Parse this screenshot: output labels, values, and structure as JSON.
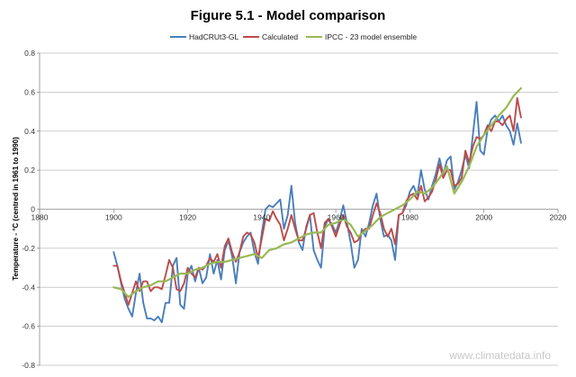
{
  "chart_data": {
    "type": "line",
    "title": "Figure 5.1 - Model comparison",
    "ylabel": "Temperature - °C (centred in 1961 to 1990)",
    "xlabel": "",
    "xlim": [
      1880,
      2020
    ],
    "ylim": [
      -0.8,
      0.8
    ],
    "xticks": [
      "1880",
      "1900",
      "1920",
      "1940",
      "1960",
      "1980",
      "2000",
      "2020"
    ],
    "yticks": [
      "0.8",
      "0.6",
      "0.4",
      "0.2",
      "0",
      "-0.2",
      "-0.4",
      "-0.6",
      "-0.8"
    ],
    "grid": "horizontal",
    "legend": "top",
    "watermark": "www.climatedata.info",
    "series": [
      {
        "name": "HadCRUt3-GL",
        "color": "#4a7ebb",
        "x": [
          1900,
          1901,
          1902,
          1903,
          1904,
          1905,
          1906,
          1907,
          1908,
          1909,
          1910,
          1911,
          1912,
          1913,
          1914,
          1915,
          1916,
          1917,
          1918,
          1919,
          1920,
          1921,
          1922,
          1923,
          1924,
          1925,
          1926,
          1927,
          1928,
          1929,
          1930,
          1931,
          1932,
          1933,
          1934,
          1935,
          1936,
          1937,
          1938,
          1939,
          1940,
          1941,
          1942,
          1943,
          1944,
          1945,
          1946,
          1947,
          1948,
          1949,
          1950,
          1951,
          1952,
          1953,
          1954,
          1955,
          1956,
          1957,
          1958,
          1959,
          1960,
          1961,
          1962,
          1963,
          1964,
          1965,
          1966,
          1967,
          1968,
          1969,
          1970,
          1971,
          1972,
          1973,
          1974,
          1975,
          1976,
          1977,
          1978,
          1979,
          1980,
          1981,
          1982,
          1983,
          1984,
          1985,
          1986,
          1987,
          1988,
          1989,
          1990,
          1991,
          1992,
          1993,
          1994,
          1995,
          1996,
          1997,
          1998,
          1999,
          2000,
          2001,
          2002,
          2003,
          2004,
          2005,
          2006,
          2007,
          2008,
          2009,
          2010
        ],
        "values": [
          -0.22,
          -0.29,
          -0.38,
          -0.46,
          -0.51,
          -0.55,
          -0.43,
          -0.33,
          -0.48,
          -0.56,
          -0.56,
          -0.57,
          -0.55,
          -0.58,
          -0.48,
          -0.48,
          -0.29,
          -0.25,
          -0.49,
          -0.51,
          -0.33,
          -0.29,
          -0.37,
          -0.3,
          -0.38,
          -0.35,
          -0.23,
          -0.33,
          -0.26,
          -0.36,
          -0.21,
          -0.16,
          -0.24,
          -0.38,
          -0.22,
          -0.17,
          -0.14,
          -0.12,
          -0.22,
          -0.28,
          -0.12,
          0.0,
          0.02,
          0.01,
          0.03,
          0.05,
          -0.1,
          -0.03,
          0.12,
          -0.07,
          -0.17,
          -0.21,
          -0.09,
          -0.03,
          -0.21,
          -0.26,
          -0.3,
          -0.09,
          -0.05,
          -0.08,
          -0.12,
          -0.06,
          0.02,
          -0.07,
          -0.17,
          -0.3,
          -0.26,
          -0.1,
          -0.14,
          -0.07,
          0.02,
          0.08,
          -0.05,
          -0.14,
          -0.13,
          -0.16,
          -0.26,
          -0.03,
          -0.02,
          0.02,
          0.09,
          0.12,
          0.07,
          0.2,
          0.1,
          0.05,
          0.12,
          0.18,
          0.26,
          0.18,
          0.25,
          0.27,
          0.1,
          0.14,
          0.2,
          0.28,
          0.21,
          0.38,
          0.55,
          0.3,
          0.28,
          0.41,
          0.46,
          0.48,
          0.45,
          0.48,
          0.43,
          0.4,
          0.33,
          0.44,
          0.34
        ]
      },
      {
        "name": "Calculated",
        "color": "#be4b48",
        "x": [
          1900,
          1901,
          1902,
          1903,
          1904,
          1905,
          1906,
          1907,
          1908,
          1909,
          1910,
          1911,
          1912,
          1913,
          1914,
          1915,
          1916,
          1917,
          1918,
          1919,
          1920,
          1921,
          1922,
          1923,
          1924,
          1925,
          1926,
          1927,
          1928,
          1929,
          1930,
          1931,
          1932,
          1933,
          1934,
          1935,
          1936,
          1937,
          1938,
          1939,
          1940,
          1941,
          1942,
          1943,
          1944,
          1945,
          1946,
          1947,
          1948,
          1949,
          1950,
          1951,
          1952,
          1953,
          1954,
          1955,
          1956,
          1957,
          1958,
          1959,
          1960,
          1961,
          1962,
          1963,
          1964,
          1965,
          1966,
          1967,
          1968,
          1969,
          1970,
          1971,
          1972,
          1973,
          1974,
          1975,
          1976,
          1977,
          1978,
          1979,
          1980,
          1981,
          1982,
          1983,
          1984,
          1985,
          1986,
          1987,
          1988,
          1989,
          1990,
          1991,
          1992,
          1993,
          1994,
          1995,
          1996,
          1997,
          1998,
          1999,
          2000,
          2001,
          2002,
          2003,
          2004,
          2005,
          2006,
          2007,
          2008,
          2009,
          2010
        ],
        "values": [
          -0.29,
          -0.29,
          -0.37,
          -0.43,
          -0.49,
          -0.43,
          -0.37,
          -0.42,
          -0.37,
          -0.37,
          -0.42,
          -0.4,
          -0.4,
          -0.41,
          -0.34,
          -0.26,
          -0.3,
          -0.41,
          -0.42,
          -0.38,
          -0.3,
          -0.33,
          -0.35,
          -0.3,
          -0.31,
          -0.29,
          -0.25,
          -0.27,
          -0.23,
          -0.3,
          -0.19,
          -0.15,
          -0.22,
          -0.27,
          -0.22,
          -0.14,
          -0.12,
          -0.13,
          -0.17,
          -0.25,
          -0.15,
          -0.05,
          -0.06,
          -0.01,
          -0.05,
          -0.08,
          -0.16,
          -0.1,
          -0.03,
          -0.1,
          -0.16,
          -0.16,
          -0.1,
          -0.03,
          -0.02,
          -0.12,
          -0.2,
          -0.07,
          -0.05,
          -0.09,
          -0.14,
          -0.08,
          -0.03,
          -0.09,
          -0.12,
          -0.17,
          -0.16,
          -0.12,
          -0.1,
          -0.1,
          -0.03,
          0.03,
          -0.02,
          -0.1,
          -0.14,
          -0.1,
          -0.18,
          -0.03,
          -0.02,
          0.04,
          0.07,
          0.08,
          0.05,
          0.12,
          0.04,
          0.06,
          0.09,
          0.15,
          0.23,
          0.16,
          0.2,
          0.2,
          0.12,
          0.13,
          0.16,
          0.3,
          0.24,
          0.32,
          0.37,
          0.36,
          0.38,
          0.43,
          0.4,
          0.45,
          0.45,
          0.43,
          0.46,
          0.48,
          0.4,
          0.57,
          0.47
        ]
      },
      {
        "name": "IPCC - 23 model ensemble",
        "color": "#98b954",
        "x": [
          1900,
          1902,
          1904,
          1906,
          1908,
          1910,
          1912,
          1914,
          1916,
          1918,
          1920,
          1922,
          1924,
          1926,
          1928,
          1930,
          1932,
          1934,
          1936,
          1938,
          1940,
          1942,
          1944,
          1946,
          1948,
          1950,
          1952,
          1954,
          1956,
          1958,
          1960,
          1962,
          1964,
          1966,
          1968,
          1970,
          1972,
          1974,
          1976,
          1978,
          1980,
          1982,
          1984,
          1986,
          1988,
          1990,
          1992,
          1994,
          1996,
          1998,
          2000,
          2002,
          2004,
          2006,
          2008,
          2010
        ],
        "values": [
          -0.4,
          -0.41,
          -0.45,
          -0.42,
          -0.4,
          -0.39,
          -0.37,
          -0.37,
          -0.35,
          -0.33,
          -0.33,
          -0.31,
          -0.3,
          -0.28,
          -0.27,
          -0.27,
          -0.26,
          -0.25,
          -0.24,
          -0.23,
          -0.25,
          -0.21,
          -0.2,
          -0.18,
          -0.17,
          -0.15,
          -0.13,
          -0.12,
          -0.12,
          -0.08,
          -0.07,
          -0.05,
          -0.08,
          -0.14,
          -0.11,
          -0.08,
          -0.04,
          -0.02,
          0.0,
          0.02,
          0.05,
          0.09,
          0.08,
          0.11,
          0.16,
          0.22,
          0.08,
          0.14,
          0.22,
          0.32,
          0.38,
          0.43,
          0.48,
          0.52,
          0.58,
          0.62
        ]
      }
    ]
  }
}
